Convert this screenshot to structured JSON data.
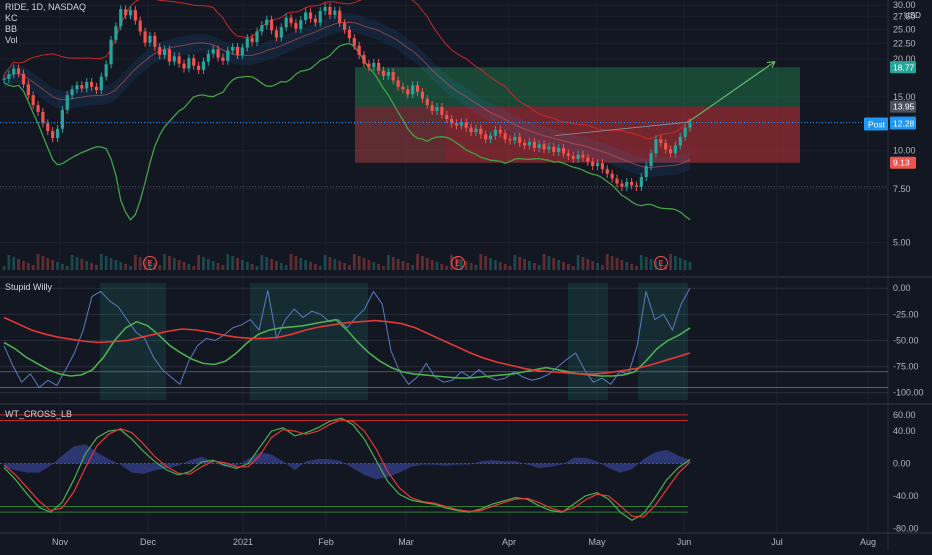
{
  "header": {
    "symbol": "RIDE, 1D, NASDAQ",
    "studies": [
      "KC",
      "BB",
      "Vol"
    ],
    "currency": "USD"
  },
  "chart_data": [
    {
      "type": "candlestick",
      "title": "RIDE, 1D, NASDAQ",
      "ylabel": "USD",
      "y_ticks": [
        "30.00",
        "27.50",
        "25.00",
        "22.50",
        "20.00",
        "15.00",
        "10.00",
        "7.50",
        "5.00"
      ],
      "ylim": [
        4.0,
        30.5
      ],
      "y_scale": "log",
      "x_tick_labels": [
        "Nov",
        "Dec",
        "2021",
        "Feb",
        "Mar",
        "Apr",
        "May",
        "Jun",
        "Jul",
        "Aug"
      ],
      "date_range": [
        "2020-10-21",
        "2021-06-03"
      ],
      "close": [
        17.2,
        17.8,
        18.6,
        17.9,
        16.5,
        15.2,
        14.1,
        13.4,
        12.3,
        11.6,
        11.0,
        11.8,
        13.6,
        15.2,
        15.9,
        16.4,
        16.0,
        16.8,
        16.2,
        15.8,
        17.5,
        19.2,
        23.1,
        25.6,
        29.1,
        27.8,
        28.9,
        26.7,
        24.6,
        22.6,
        23.8,
        21.9,
        20.6,
        21.5,
        19.6,
        20.4,
        19.3,
        18.6,
        20.1,
        19.0,
        18.4,
        19.6,
        20.8,
        21.5,
        20.2,
        19.7,
        21.3,
        21.9,
        20.6,
        21.8,
        23.4,
        22.7,
        24.6,
        25.8,
        26.9,
        24.8,
        23.5,
        25.4,
        27.3,
        26.2,
        25.1,
        26.8,
        28.4,
        27.1,
        26.3,
        28.7,
        29.6,
        27.9,
        28.8,
        26.2,
        24.9,
        23.4,
        22.1,
        20.6,
        19.3,
        18.8,
        19.4,
        18.3,
        17.6,
        18.1,
        17.0,
        16.2,
        15.9,
        15.3,
        16.4,
        15.6,
        14.8,
        14.1,
        13.5,
        13.9,
        13.1,
        12.7,
        12.3,
        12.1,
        12.4,
        11.9,
        11.5,
        11.8,
        11.3,
        10.9,
        11.2,
        11.7,
        11.4,
        10.9,
        10.8,
        11.1,
        10.6,
        10.4,
        10.7,
        10.2,
        10.5,
        10.1,
        10.3,
        9.9,
        10.2,
        9.8,
        9.6,
        9.4,
        9.7,
        9.5,
        9.2,
        8.9,
        9.1,
        8.7,
        8.4,
        8.1,
        7.8,
        7.6,
        7.9,
        7.7,
        7.6,
        8.2,
        8.9,
        9.8,
        10.9,
        10.6,
        10.1,
        9.8,
        10.4,
        11.1,
        11.9,
        12.37
      ],
      "reference_lines": [
        {
          "name": "Post",
          "value": 12.28
        },
        {
          "name": "last",
          "value": 12.37
        }
      ],
      "price_labels": [
        {
          "value": 18.77,
          "color": "#26a69a"
        },
        {
          "value": 13.95,
          "color": "#4c525e"
        },
        {
          "value": 12.37,
          "color": "#1e88e5"
        },
        {
          "value": 12.28,
          "color": "#2196f3"
        },
        {
          "value": 9.13,
          "color": "#ef5350"
        }
      ],
      "position_box": {
        "entry": 13.95,
        "target": 18.77,
        "stop": 9.13
      },
      "events": [
        "E",
        "E",
        "E"
      ]
    },
    {
      "type": "line",
      "title": "Stupid Willy",
      "y_ticks": [
        "0.00",
        "-25.00",
        "-50.00",
        "-75.00",
        "-100.00"
      ],
      "ylim": [
        -107,
        5
      ],
      "series": [
        {
          "name": "",
          "color": "#5b7bbf",
          "values": [
            -55,
            -74,
            -90,
            -82,
            -95,
            -88,
            -93,
            -78,
            -62,
            -40,
            -8,
            -3,
            -12,
            -18,
            -30,
            -42,
            -48,
            -66,
            -78,
            -85,
            -92,
            -70,
            -55,
            -48,
            -50,
            -45,
            -38,
            -35,
            -30,
            -40,
            -2,
            -48,
            -30,
            -20,
            -28,
            -22,
            -25,
            -32,
            -30,
            -38,
            -28,
            -20,
            -3,
            -15,
            -60,
            -80,
            -92,
            -85,
            -72,
            -85,
            -90,
            -88,
            -80,
            -85,
            -78,
            -85,
            -88,
            -86,
            -80,
            -85,
            -88,
            -86,
            -82,
            -75,
            -68,
            -62,
            -78,
            -90,
            -86,
            -92,
            -80,
            -82,
            -55,
            -3,
            -30,
            -25,
            -40,
            -15,
            0
          ]
        },
        {
          "name": "",
          "color": "#4caf50",
          "values": [
            -52,
            -58,
            -66,
            -72,
            -78,
            -82,
            -84,
            -83,
            -78,
            -66,
            -50,
            -38,
            -32,
            -36,
            -45,
            -55,
            -62,
            -68,
            -72,
            -73,
            -70,
            -62,
            -52,
            -44,
            -40,
            -38,
            -37,
            -36,
            -34,
            -32,
            -30,
            -40,
            -52,
            -62,
            -70,
            -76,
            -80,
            -82,
            -83,
            -84,
            -85,
            -86,
            -86,
            -85,
            -84,
            -83,
            -82,
            -80,
            -78,
            -76,
            -78,
            -80,
            -82,
            -83,
            -84,
            -84,
            -83,
            -80,
            -70,
            -58,
            -50,
            -45,
            -38
          ]
        },
        {
          "name": "",
          "color": "#e53935",
          "values": [
            -28,
            -34,
            -40,
            -44,
            -47,
            -49,
            -51,
            -52,
            -51,
            -50,
            -47,
            -44,
            -41,
            -39,
            -40,
            -42,
            -45,
            -47,
            -48,
            -48,
            -47,
            -44,
            -40,
            -37,
            -35,
            -33,
            -32,
            -31,
            -32,
            -34,
            -38,
            -44,
            -50,
            -56,
            -62,
            -67,
            -71,
            -74,
            -77,
            -79,
            -80,
            -81,
            -82,
            -82,
            -81,
            -79,
            -77,
            -74,
            -70,
            -66,
            -62
          ]
        }
      ]
    },
    {
      "type": "line",
      "title": "WT_CROSS_LB",
      "y_ticks": [
        "60.00",
        "40.00",
        "0.00",
        "-40.00",
        "-80.00"
      ],
      "ylim": [
        -82,
        66
      ],
      "series": [
        {
          "name": "",
          "color": "#4caf50",
          "values": [
            -5,
            -20,
            -38,
            -54,
            -60,
            -48,
            -20,
            12,
            32,
            40,
            42,
            30,
            15,
            2,
            -8,
            -14,
            -10,
            2,
            4,
            -2,
            -6,
            0,
            20,
            40,
            44,
            34,
            38,
            44,
            52,
            56,
            48,
            30,
            4,
            -22,
            -38,
            -45,
            -48,
            -50,
            -55,
            -58,
            -60,
            -56,
            -50,
            -46,
            -42,
            -44,
            -52,
            -58,
            -60,
            -50,
            -40,
            -36,
            -44,
            -60,
            -70,
            -62,
            -42,
            -20,
            -5,
            5
          ]
        },
        {
          "name": "",
          "color": "#e53935",
          "values": [
            -2,
            -14,
            -30,
            -46,
            -58,
            -55,
            -35,
            -5,
            22,
            36,
            43,
            38,
            24,
            8,
            -4,
            -12,
            -13,
            -4,
            3,
            1,
            -4,
            -4,
            10,
            32,
            42,
            40,
            36,
            40,
            48,
            54,
            52,
            40,
            18,
            -10,
            -30,
            -42,
            -47,
            -49,
            -53,
            -57,
            -59,
            -58,
            -53,
            -48,
            -44,
            -43,
            -48,
            -55,
            -59,
            -55,
            -45,
            -38,
            -40,
            -52,
            -65,
            -66,
            -52,
            -32,
            -12,
            2
          ]
        }
      ]
    }
  ]
}
